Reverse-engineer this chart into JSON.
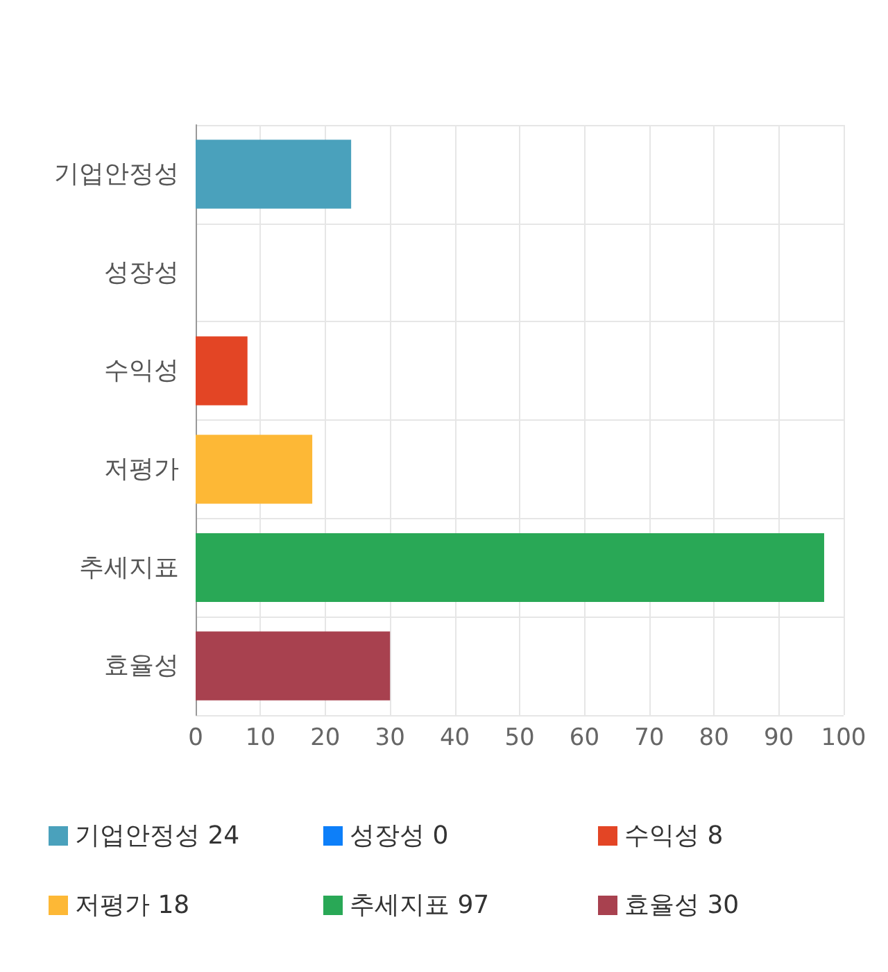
{
  "chart_data": {
    "type": "bar",
    "orientation": "horizontal",
    "categories": [
      "기업안정성",
      "성장성",
      "수익성",
      "저평가",
      "추세지표",
      "효율성"
    ],
    "series": [
      {
        "name": "기업안정성 24",
        "color": "#4aa1bc",
        "values": [
          24,
          null,
          null,
          null,
          null,
          null
        ]
      },
      {
        "name": "성장성 0",
        "color": "#0d7ff9",
        "values": [
          null,
          0,
          null,
          null,
          null,
          null
        ]
      },
      {
        "name": "수익성 8",
        "color": "#e34525",
        "values": [
          null,
          null,
          8,
          null,
          null,
          null
        ]
      },
      {
        "name": "저평가 18",
        "color": "#fdb836",
        "values": [
          null,
          null,
          null,
          18,
          null,
          null
        ]
      },
      {
        "name": "추세지표 97",
        "color": "#29a856",
        "values": [
          null,
          null,
          null,
          null,
          97,
          null
        ]
      },
      {
        "name": "효율성 30",
        "color": "#a8414f",
        "values": [
          null,
          null,
          null,
          null,
          null,
          30
        ]
      }
    ],
    "xlim": [
      0,
      100
    ],
    "xticks": [
      0,
      10,
      20,
      30,
      40,
      50,
      60,
      70,
      80,
      90,
      100
    ],
    "grid": true,
    "legend": "bottom"
  }
}
